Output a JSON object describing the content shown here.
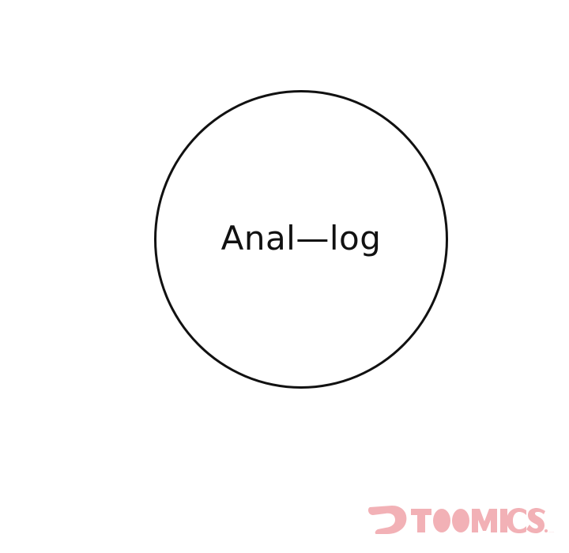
{
  "bubble": {
    "text": "Anal—log"
  },
  "watermark": {
    "text": "TOOMICS.com",
    "color": "#e8737c",
    "icon": "toomics-d-logo-icon"
  }
}
